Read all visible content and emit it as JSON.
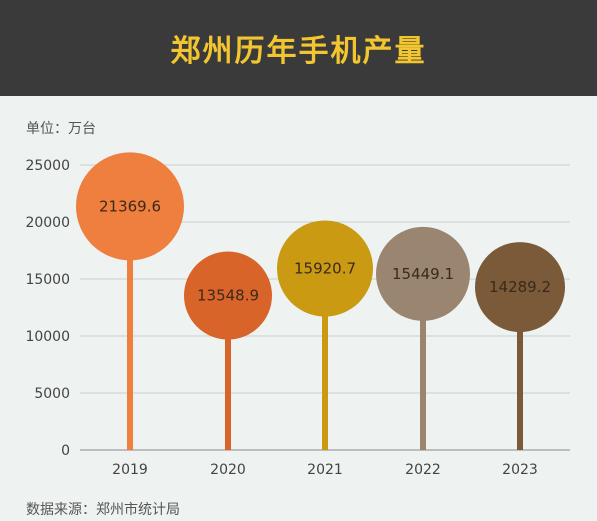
{
  "header": {
    "title": "郑州历年手机产量"
  },
  "unit_label": "单位：万台",
  "source_label": "数据来源：郑州市统计局",
  "colors": {
    "header_bg": "#3a3a3a",
    "title": "#f3c630",
    "grid": "#c9cfcf",
    "bars": [
      "#ef7f3f",
      "#d9642a",
      "#c99a12",
      "#9a8570",
      "#7a5a38"
    ]
  },
  "chart_data": {
    "type": "bar",
    "title": "郑州历年手机产量",
    "ylabel": "单位：万台",
    "categories": [
      "2019",
      "2020",
      "2021",
      "2022",
      "2023"
    ],
    "values": [
      21369.6,
      13548.9,
      15920.7,
      15449.1,
      14289.2
    ],
    "value_labels": [
      "21369.6",
      "13548.9",
      "15920.7",
      "15449.1",
      "14289.2"
    ],
    "ylim": [
      0,
      25000
    ],
    "yticks": [
      0,
      5000,
      10000,
      15000,
      20000,
      25000
    ],
    "grid": true
  }
}
